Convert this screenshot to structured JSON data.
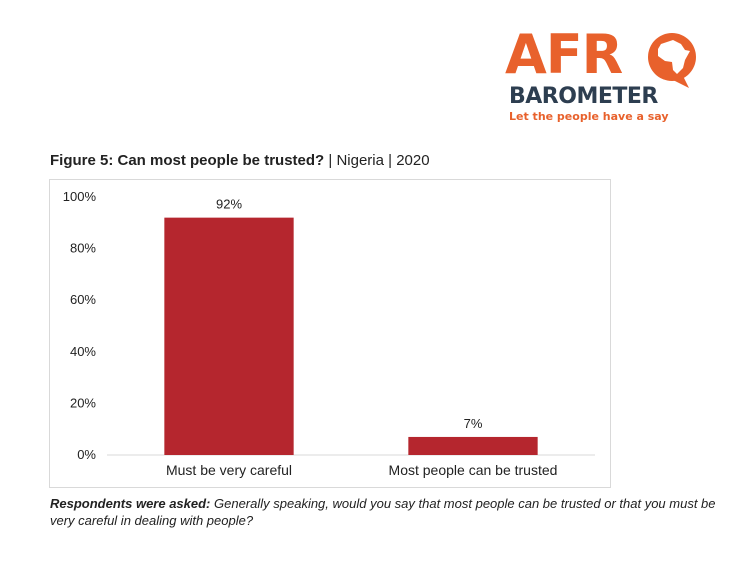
{
  "logo": {
    "word_afro": "AFR",
    "word_barometer": "BAROMETER",
    "tagline": "Let the people have a say",
    "colors": {
      "orange": "#e8612c",
      "navy": "#2d3e50"
    }
  },
  "figure": {
    "title_main": "Figure 5: Can most people be trusted?",
    "title_sep1": " | ",
    "title_country": "Nigeria",
    "title_sep2": " | ",
    "title_year": "2020"
  },
  "chart_data": {
    "type": "bar",
    "categories": [
      "Must be very careful",
      "Most people can be trusted"
    ],
    "values": [
      92,
      7
    ],
    "data_labels": [
      "92%",
      "7%"
    ],
    "y_ticks": [
      "0%",
      "20%",
      "40%",
      "60%",
      "80%",
      "100%"
    ],
    "ylim": [
      0,
      100
    ],
    "bar_color": "#b5262e",
    "grid": false,
    "title": "",
    "xlabel": "",
    "ylabel": ""
  },
  "note": {
    "lead": "Respondents were asked:",
    "text": " Generally speaking, would you say that most people can be trusted or that you must be very careful in dealing with people?"
  }
}
